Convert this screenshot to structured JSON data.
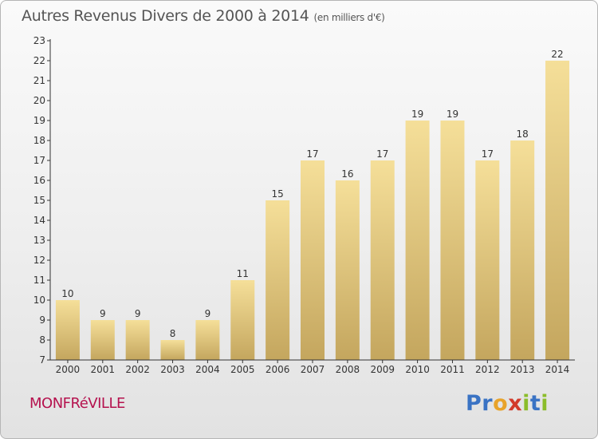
{
  "header": {
    "title": "Autres Revenus Divers de 2000 à 2014",
    "subtitle": "(en milliers d'€)"
  },
  "footer": {
    "town": "MONFRéVILLE",
    "logo": {
      "letters": [
        "P",
        "r",
        "o",
        "x",
        "i",
        "t",
        "i"
      ],
      "colors": [
        "#3a73c4",
        "#3a73c4",
        "#e8a32a",
        "#d23a2a",
        "#8bbd2a",
        "#3a73c4",
        "#8bbd2a"
      ]
    }
  },
  "chart_data": {
    "type": "bar",
    "categories": [
      "2000",
      "2001",
      "2002",
      "2003",
      "2004",
      "2005",
      "2006",
      "2007",
      "2008",
      "2009",
      "2010",
      "2011",
      "2012",
      "2013",
      "2014"
    ],
    "values": [
      10,
      9,
      9,
      8,
      9,
      11,
      15,
      17,
      16,
      17,
      19,
      19,
      17,
      18,
      22
    ],
    "data_labels": [
      "10",
      "9",
      "9",
      "8",
      "9",
      "11",
      "15",
      "17",
      "16",
      "17",
      "19",
      "19",
      "17",
      "18",
      "22"
    ],
    "y_ticks": [
      "7",
      "8",
      "9",
      "10",
      "11",
      "12",
      "13",
      "14",
      "15",
      "16",
      "17",
      "18",
      "19",
      "20",
      "21",
      "22",
      "23"
    ],
    "ylim": [
      7,
      23
    ],
    "grid": false,
    "colors": {
      "bar_light": "#f5df99",
      "bar_dark": "#c4a65e",
      "axis": "#333333",
      "text": "#333333"
    }
  }
}
